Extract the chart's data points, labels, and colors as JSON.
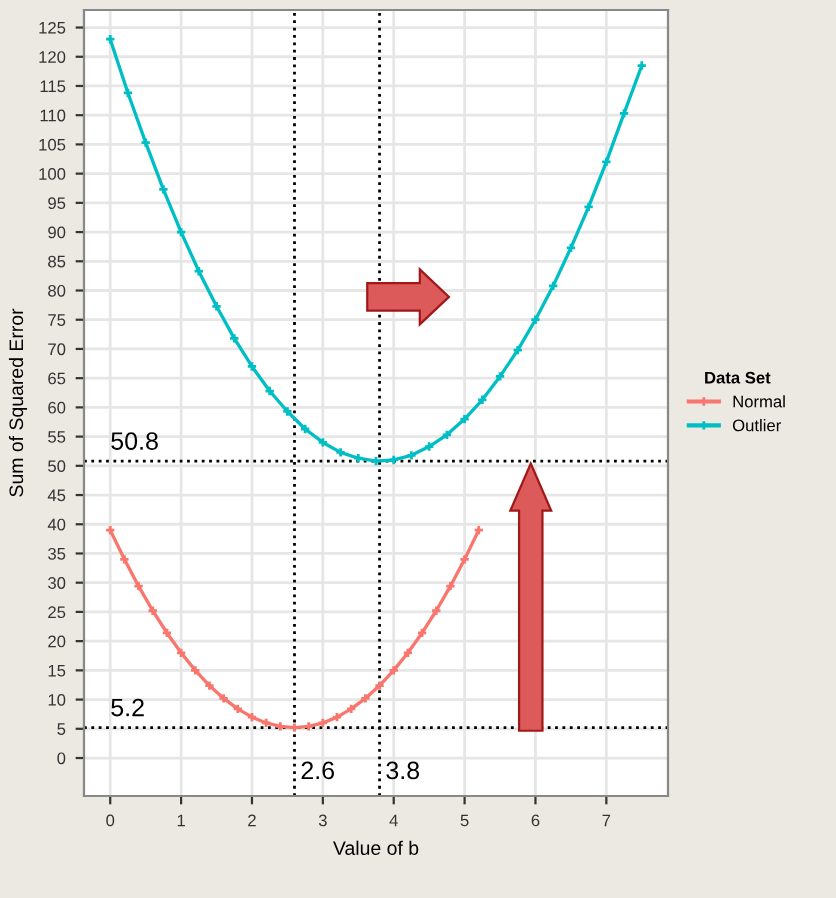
{
  "chart_data": {
    "type": "line",
    "xlabel": "Value of b",
    "ylabel": "Sum of Squared Error",
    "legend_title": "Data Set",
    "series": [
      {
        "name": "Normal",
        "color": "#f8766d",
        "x": [
          0,
          0.2,
          0.4,
          0.6,
          0.8,
          1.0,
          1.2,
          1.4,
          1.6,
          1.8,
          2.0,
          2.2,
          2.4,
          2.6,
          2.8,
          3.0,
          3.2,
          3.4,
          3.6,
          3.8,
          4.0,
          4.2,
          4.4,
          4.6,
          4.8,
          5.0,
          5.2
        ],
        "values": [
          39.0,
          34.0,
          29.4,
          25.2,
          21.4,
          18.0,
          15.0,
          12.4,
          10.2,
          8.4,
          7.0,
          6.0,
          5.4,
          5.2,
          5.4,
          6.0,
          7.0,
          8.4,
          10.2,
          12.4,
          15.0,
          18.0,
          21.4,
          25.2,
          29.4,
          34.0,
          39.0
        ]
      },
      {
        "name": "Outlier",
        "color": "#00bfc4",
        "x": [
          0,
          0.25,
          0.5,
          0.75,
          1,
          1.25,
          1.5,
          1.75,
          2,
          2.25,
          2.5,
          2.75,
          3,
          3.25,
          3.5,
          3.75,
          4,
          4.25,
          4.5,
          4.75,
          5,
          5.25,
          5.5,
          5.75,
          6,
          6.25,
          6.5,
          6.75,
          7,
          7.25,
          7.5
        ],
        "values": [
          123.0,
          113.8,
          105.3,
          97.3,
          90.0,
          83.3,
          77.3,
          71.8,
          67.0,
          62.8,
          59.3,
          56.3,
          54.0,
          52.3,
          51.3,
          50.8,
          51.0,
          51.8,
          53.3,
          55.3,
          58.0,
          61.3,
          65.3,
          69.8,
          75.0,
          80.8,
          87.3,
          94.3,
          102.0,
          110.3,
          118.5
        ]
      }
    ],
    "xlim": [
      -0.37,
      7.87
    ],
    "xticks": [
      0,
      1,
      2,
      3,
      4,
      5,
      6,
      7
    ],
    "ylim": [
      -6.5,
      128
    ],
    "yticks": [
      0,
      5,
      10,
      15,
      20,
      25,
      30,
      35,
      40,
      45,
      50,
      55,
      60,
      65,
      70,
      75,
      80,
      85,
      90,
      95,
      100,
      105,
      110,
      115,
      120,
      125
    ],
    "ref_lines": [
      {
        "axis": "y",
        "value": 50.8,
        "label": "50.8",
        "color": "#000000",
        "line_style": "dotted"
      },
      {
        "axis": "y",
        "value": 5.2,
        "label": "5.2",
        "color": "#000000",
        "line_style": "dotted"
      },
      {
        "axis": "x",
        "value": 2.6,
        "label": "2.6",
        "color": "#000000",
        "line_style": "dotted"
      },
      {
        "axis": "x",
        "value": 3.8,
        "label": "3.8",
        "color": "#000000",
        "line_style": "dotted"
      }
    ],
    "grid": true,
    "legend": "right",
    "marker": "cross",
    "line_style": "solid"
  }
}
